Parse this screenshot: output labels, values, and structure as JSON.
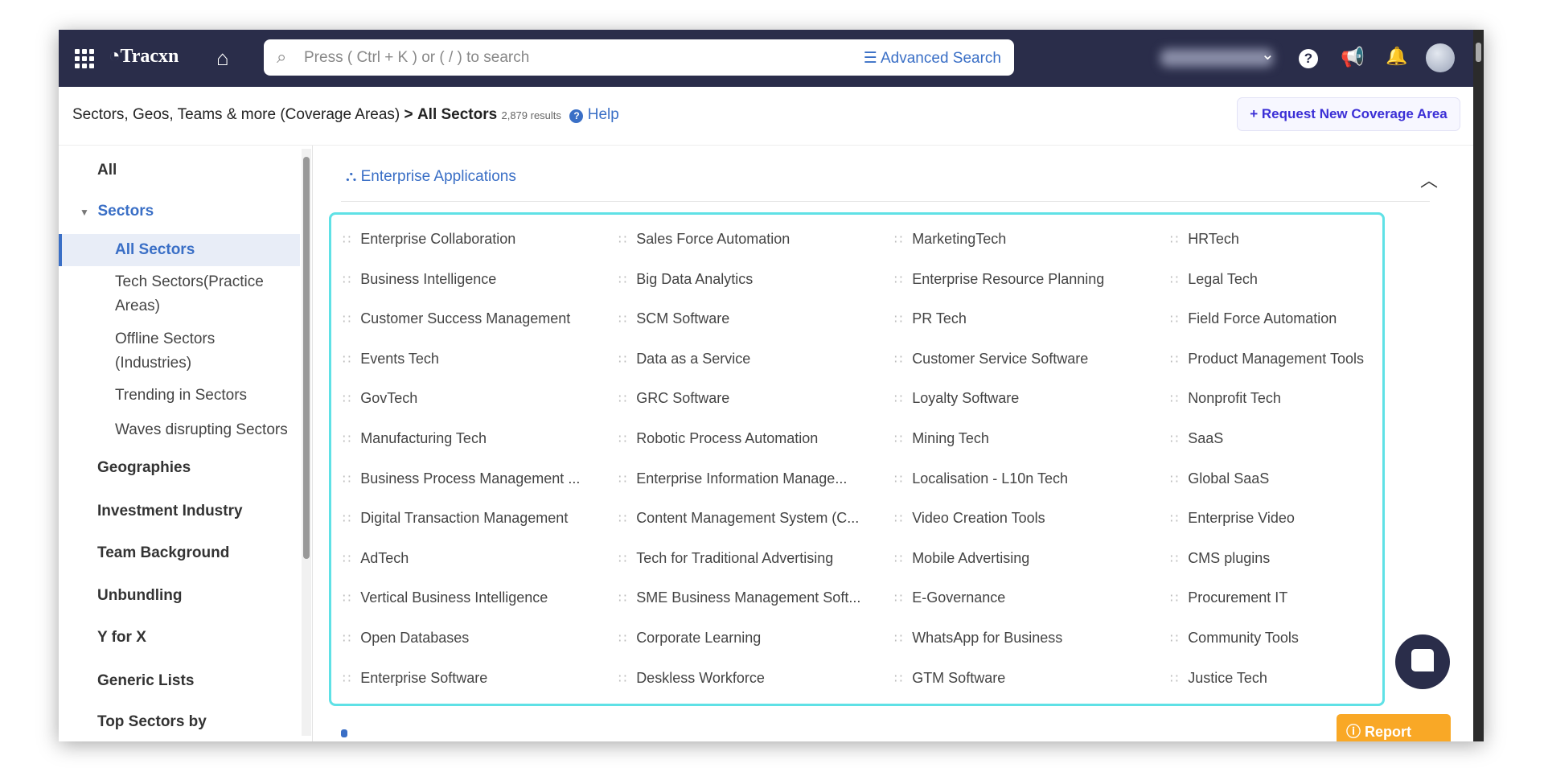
{
  "nav": {
    "logo": "Tracxn",
    "search_placeholder": "Press ( Ctrl + K ) or ( / ) to search",
    "advanced_search": "Advanced Search"
  },
  "breadcrumb": {
    "parent": "Sectors, Geos, Teams & more (Coverage Areas)",
    "sep": ">",
    "current": "All Sectors",
    "count": "2,879 results",
    "help": "Help"
  },
  "request_button": "+ Request New Coverage Area",
  "sidebar": {
    "all": "All",
    "sectors": "Sectors",
    "sub": [
      "All Sectors",
      "Tech Sectors(Practice Areas)",
      "Offline Sectors (Industries)",
      "Trending in Sectors",
      "Waves disrupting Sectors"
    ],
    "items": [
      "Geographies",
      "Investment Industry",
      "Team Background",
      "Unbundling",
      "Y for X",
      "Generic Lists",
      "Top Sectors by"
    ]
  },
  "section": {
    "title": "Enterprise Applications",
    "rows": [
      [
        "Enterprise Collaboration",
        "Sales Force Automation",
        "MarketingTech",
        "HRTech"
      ],
      [
        "Business Intelligence",
        "Big Data Analytics",
        "Enterprise Resource Planning",
        "Legal Tech"
      ],
      [
        "Customer Success Management",
        "SCM Software",
        "PR Tech",
        "Field Force Automation"
      ],
      [
        "Events Tech",
        "Data as a Service",
        "Customer Service Software",
        "Product Management Tools"
      ],
      [
        "GovTech",
        "GRC Software",
        "Loyalty Software",
        "Nonprofit Tech"
      ],
      [
        "Manufacturing Tech",
        "Robotic Process Automation",
        "Mining Tech",
        "SaaS"
      ],
      [
        "Business Process Management ...",
        "Enterprise Information Manage...",
        "Localisation - L10n Tech",
        "Global SaaS"
      ],
      [
        "Digital Transaction Management",
        "Content Management System (C...",
        "Video Creation Tools",
        "Enterprise Video"
      ],
      [
        "AdTech",
        "Tech for Traditional Advertising",
        "Mobile Advertising",
        "CMS plugins"
      ],
      [
        "Vertical Business Intelligence",
        "SME Business Management Soft...",
        "E-Governance",
        "Procurement IT"
      ],
      [
        "Open Databases",
        "Corporate Learning",
        "WhatsApp for Business",
        "Community Tools"
      ],
      [
        "Enterprise Software",
        "Deskless Workforce",
        "GTM Software",
        "Justice Tech"
      ]
    ]
  },
  "report_issue": "Report Issue",
  "colors": {
    "navbar": "#2a2d4a",
    "accent": "#3a6fc6",
    "highlight_border": "#5fe1e6",
    "report": "#f9a826"
  }
}
